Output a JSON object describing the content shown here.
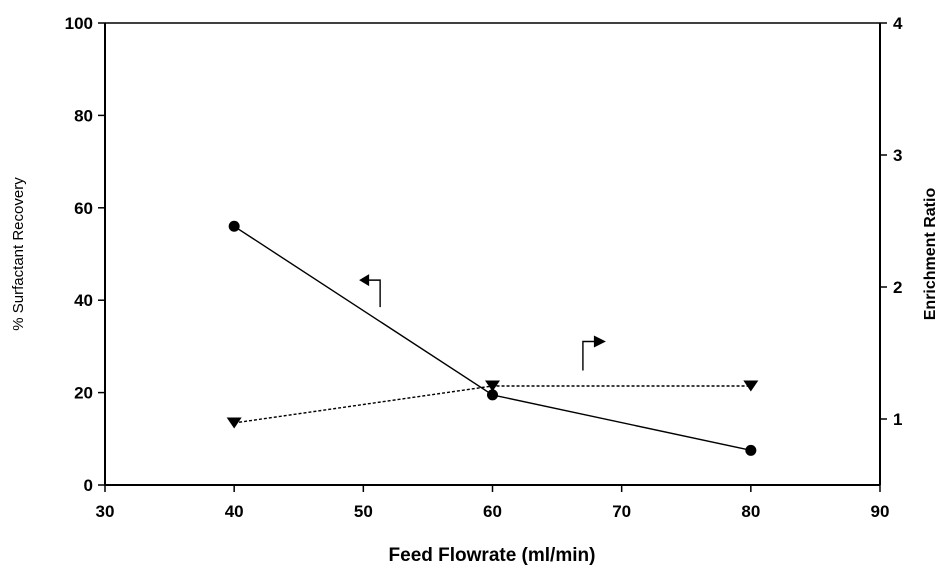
{
  "chart_data": {
    "type": "line",
    "xlabel": "Feed Flowrate (ml/min)",
    "ylabel": "% Surfactant Recovery",
    "y2label": "Enrichment Ratio",
    "xlim": [
      30,
      90
    ],
    "ylim": [
      0,
      100
    ],
    "y2lim": [
      0.5,
      4
    ],
    "xticks": [
      "30",
      "40",
      "50",
      "60",
      "70",
      "80",
      "90"
    ],
    "yticks": [
      "0",
      "20",
      "40",
      "60",
      "80",
      "100"
    ],
    "y2ticks": [
      "1",
      "2",
      "3",
      "4"
    ],
    "grid": false,
    "series": [
      {
        "axis": "left",
        "marker": "circle",
        "line_style": "solid",
        "x": [
          40,
          60,
          80
        ],
        "values": [
          56,
          19.5,
          7.5
        ]
      },
      {
        "axis": "right",
        "marker": "triangle-down",
        "line_style": "dashed",
        "x": [
          40,
          60,
          80
        ],
        "values": [
          0.97,
          1.25,
          1.25
        ]
      }
    ],
    "annotations": [
      {
        "type": "arrow",
        "direction": "left",
        "points_to_axis": "left",
        "x": 51.3,
        "y": 38.5
      },
      {
        "type": "arrow",
        "direction": "right",
        "points_to_axis": "right",
        "x": 67,
        "y": 25
      }
    ],
    "colors": {
      "line": "#000000",
      "background": "#ffffff"
    }
  }
}
